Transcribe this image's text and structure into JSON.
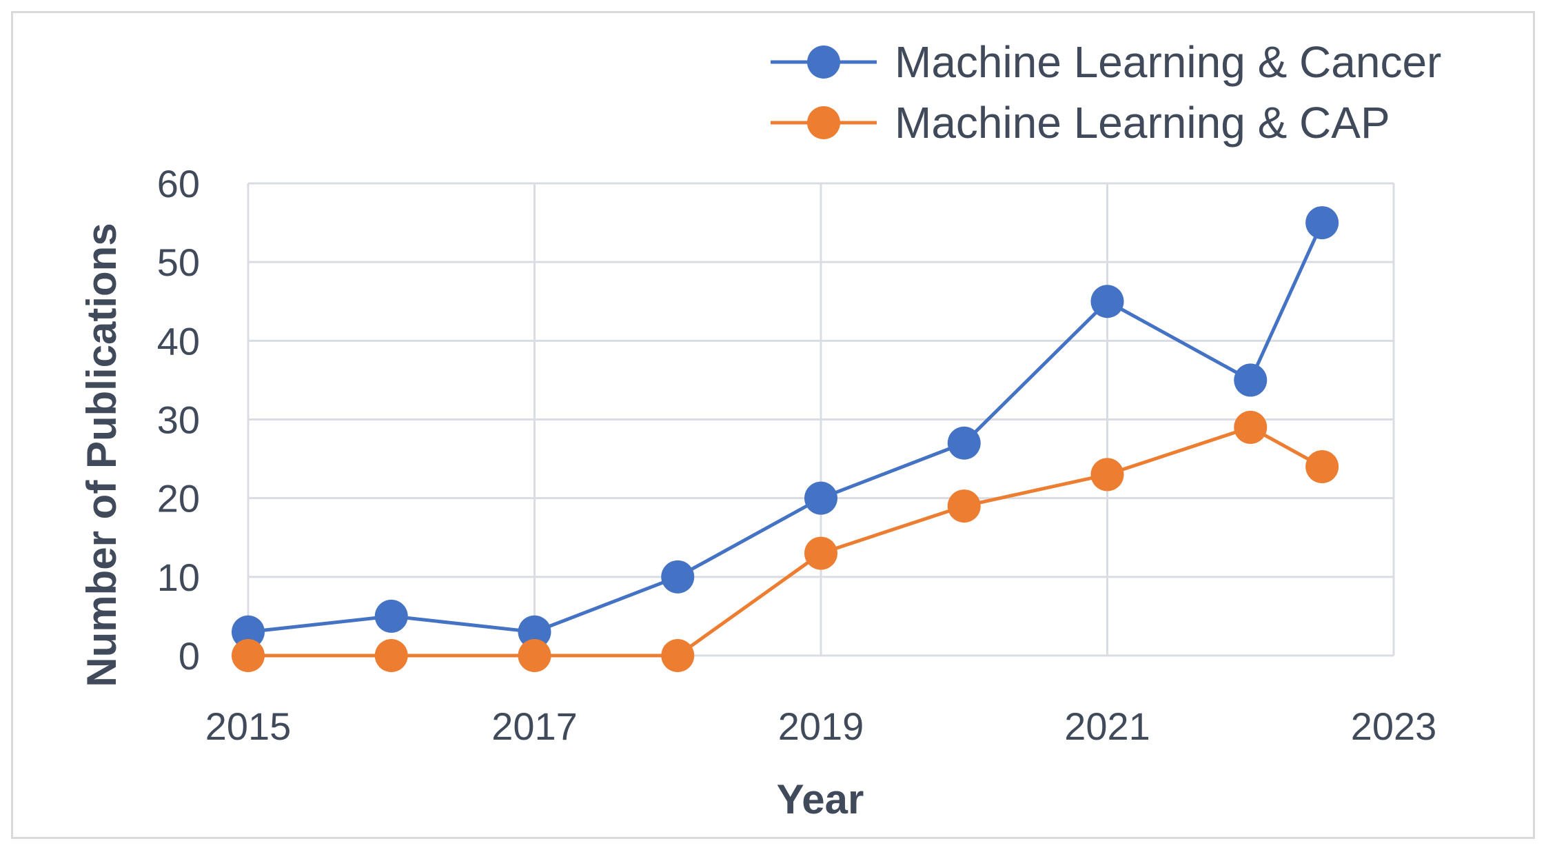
{
  "chart_data": {
    "type": "line",
    "xlabel": "Year",
    "ylabel": "Number of Publications",
    "xlim": [
      2015,
      2023
    ],
    "ylim": [
      0,
      60
    ],
    "x_ticks": [
      2015,
      2017,
      2019,
      2021,
      2023
    ],
    "y_ticks": [
      0,
      10,
      20,
      30,
      40,
      50,
      60
    ],
    "grid": true,
    "legend_position": "top-right",
    "series": [
      {
        "name": "Machine Learning & Cancer",
        "color": "#4472c4",
        "x": [
          2015,
          2016,
          2017,
          2018,
          2019,
          2020,
          2021,
          2022,
          2022.5
        ],
        "y": [
          3,
          5,
          3,
          10,
          20,
          27,
          45,
          35,
          55
        ]
      },
      {
        "name": "Machine Learning & CAP",
        "color": "#ed7d31",
        "x": [
          2015,
          2016,
          2017,
          2018,
          2019,
          2020,
          2021,
          2022,
          2022.5
        ],
        "y": [
          0,
          0,
          0,
          0,
          13,
          19,
          23,
          29,
          24
        ]
      }
    ]
  }
}
